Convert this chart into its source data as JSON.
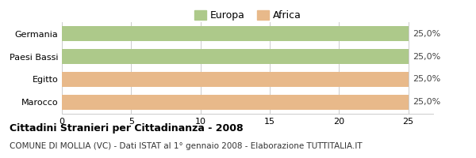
{
  "categories": [
    "Marocco",
    "Egitto",
    "Paesi Bassi",
    "Germania"
  ],
  "values": [
    25.0,
    25.0,
    25.0,
    25.0
  ],
  "bar_colors": [
    "#e8b98a",
    "#e8b98a",
    "#adc98a",
    "#adc98a"
  ],
  "bar_labels": [
    "25,0%",
    "25,0%",
    "25,0%",
    "25,0%"
  ],
  "xlim": [
    0,
    25
  ],
  "xticks": [
    0,
    5,
    10,
    15,
    20,
    25
  ],
  "legend_labels": [
    "Europa",
    "Africa"
  ],
  "legend_colors": [
    "#adc98a",
    "#e8b98a"
  ],
  "title": "Cittadini Stranieri per Cittadinanza - 2008",
  "subtitle": "COMUNE DI MOLLIA (VC) - Dati ISTAT al 1° gennaio 2008 - Elaborazione TUTTITALIA.IT",
  "background_color": "#ffffff",
  "grid_color": "#cccccc"
}
